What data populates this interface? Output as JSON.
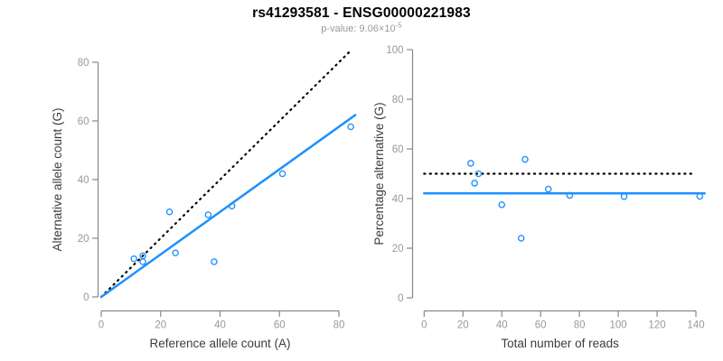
{
  "header": {
    "title": "rs41293581 - ENSG00000221983",
    "subtitle_prefix": "p-value: 9.06×10",
    "subtitle_exponent": "-5"
  },
  "colors": {
    "accent_blue": "#1E90FF",
    "identity_black": "#000000",
    "axis_gray": "#888888",
    "tick_label_gray": "#999999",
    "axis_title": "#3d3d3d",
    "background": "#ffffff"
  },
  "chart_data": [
    {
      "type": "scatter",
      "name": "allele-counts-scatter",
      "xlabel": "Reference allele count (A)",
      "ylabel": "Alternative allele count (G)",
      "xticks": [
        0,
        20,
        40,
        60,
        80
      ],
      "yticks": [
        0,
        20,
        40,
        60,
        80
      ],
      "xlim": [
        0,
        86
      ],
      "ylim": [
        0,
        84
      ],
      "grid": false,
      "legend": "none",
      "points": [
        [
          11,
          13
        ],
        [
          14,
          14
        ],
        [
          14,
          12
        ],
        [
          23,
          29
        ],
        [
          25,
          15
        ],
        [
          36,
          28
        ],
        [
          38,
          12
        ],
        [
          44,
          31
        ],
        [
          61,
          42
        ],
        [
          84,
          58
        ]
      ],
      "lines": [
        {
          "name": "identity-line",
          "style": "dotted",
          "color": "#000000",
          "x1": 0,
          "y1": 0,
          "x2": 84,
          "y2": 84
        },
        {
          "name": "fit-line",
          "style": "solid",
          "color": "#1E90FF",
          "x1": 0,
          "y1": 0,
          "x2": 85.5,
          "y2": 62
        }
      ]
    },
    {
      "type": "scatter",
      "name": "percentage-vs-reads-scatter",
      "xlabel": "Total number of reads",
      "ylabel": "Percentage alternative (G)",
      "xticks": [
        0,
        20,
        40,
        60,
        80,
        100,
        120,
        140
      ],
      "yticks": [
        0,
        20,
        40,
        60,
        80,
        100
      ],
      "xlim": [
        0,
        145
      ],
      "ylim": [
        0,
        100
      ],
      "grid": false,
      "legend": "none",
      "points": [
        [
          24,
          54.2
        ],
        [
          28,
          50
        ],
        [
          26,
          46.2
        ],
        [
          40,
          37.5
        ],
        [
          50,
          24
        ],
        [
          52,
          55.8
        ],
        [
          64,
          43.8
        ],
        [
          75,
          41.3
        ],
        [
          103,
          40.8
        ],
        [
          142,
          40.9
        ]
      ],
      "lines": [
        {
          "name": "expected-50pct-line",
          "style": "dotted",
          "color": "#000000",
          "x1": 0,
          "y1": 50,
          "x2": 140,
          "y2": 50
        },
        {
          "name": "mean-percentage-line",
          "style": "solid",
          "color": "#1E90FF",
          "x1": 0,
          "y1": 42.1,
          "x2": 144.5,
          "y2": 42.1
        }
      ]
    }
  ]
}
